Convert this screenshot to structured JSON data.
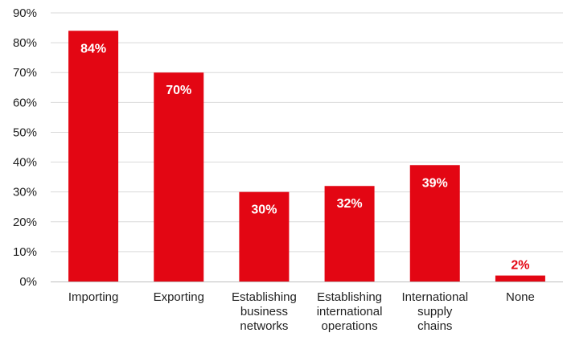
{
  "chart_data": {
    "type": "bar",
    "categories": [
      [
        "Importing"
      ],
      [
        "Exporting"
      ],
      [
        "Establishing",
        "business",
        "networks"
      ],
      [
        "Establishing",
        "international",
        "operations"
      ],
      [
        "International",
        "supply",
        "chains"
      ],
      [
        "None"
      ]
    ],
    "values": [
      84,
      70,
      30,
      32,
      39,
      2
    ],
    "data_labels": [
      "84%",
      "70%",
      "30%",
      "32%",
      "39%",
      "2%"
    ],
    "y_ticks": [
      0,
      10,
      20,
      30,
      40,
      50,
      60,
      70,
      80,
      90
    ],
    "y_tick_labels": [
      "0%",
      "10%",
      "20%",
      "30%",
      "40%",
      "50%",
      "60%",
      "70%",
      "80%",
      "90%"
    ],
    "ylim": [
      0,
      90
    ],
    "grid": true,
    "legend": "none",
    "colors": {
      "bar": "#e30613",
      "grid": "#d9d9d9",
      "axis": "#bfbfbf",
      "label_inside": "#ffffff",
      "label_outside": "#e30613"
    }
  }
}
